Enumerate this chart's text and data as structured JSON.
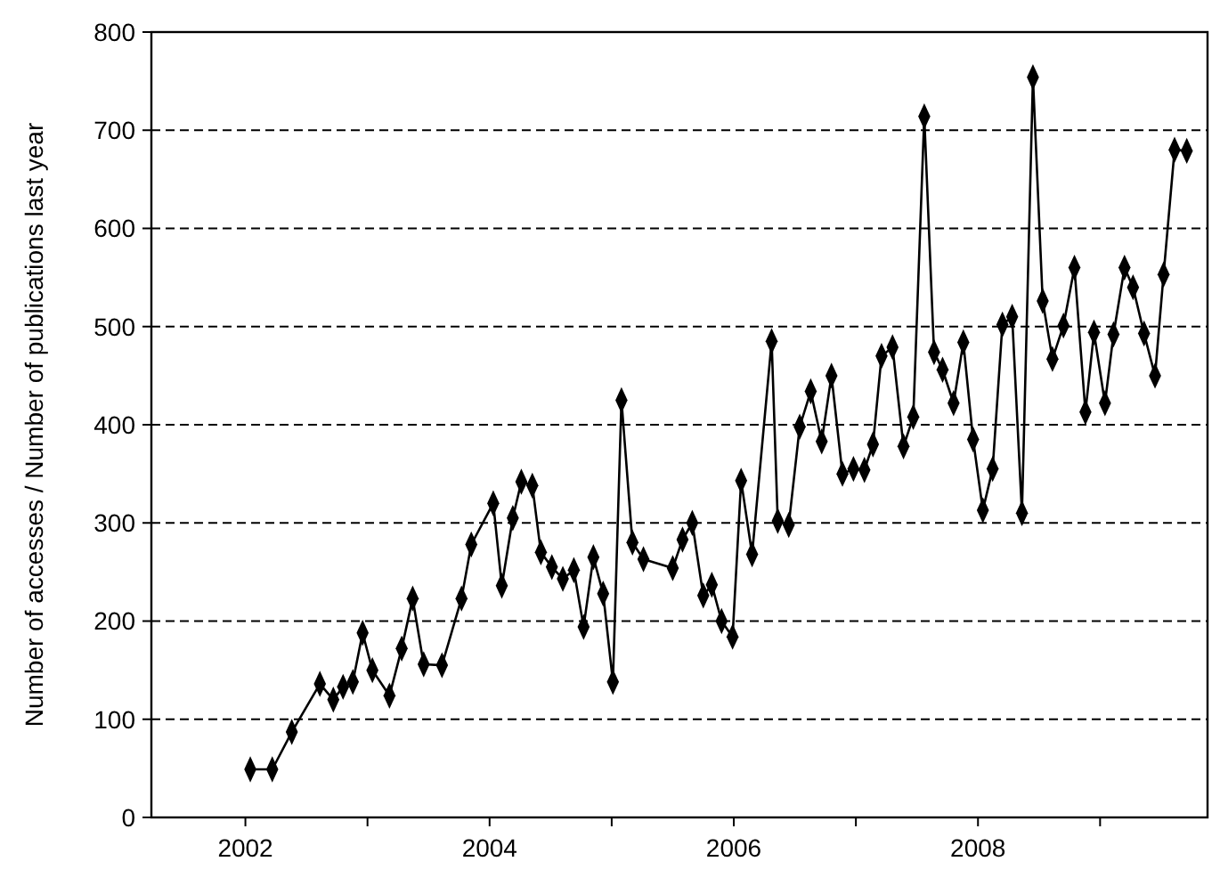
{
  "chart_data": {
    "type": "line",
    "ylabel": "Number of accesses / Number of publications last year",
    "xlim": [
      2001.23,
      2009.88
    ],
    "xticks": [
      {
        "value": 2002,
        "label": "2002"
      },
      {
        "value": 2003,
        "label": null
      },
      {
        "value": 2004,
        "label": "2004"
      },
      {
        "value": 2005,
        "label": null
      },
      {
        "value": 2006,
        "label": "2006"
      },
      {
        "value": 2007,
        "label": null
      },
      {
        "value": 2008,
        "label": "2008"
      },
      {
        "value": 2009,
        "label": null
      }
    ],
    "ylim": [
      0,
      800
    ],
    "yticks": [
      0,
      100,
      200,
      300,
      400,
      500,
      600,
      700,
      800
    ],
    "grid": "y",
    "marker": "diamond",
    "line_style": "solid",
    "series": [
      {
        "color": "#000000",
        "x": [
          2002.04,
          2002.22,
          2002.38,
          2002.61,
          2002.72,
          2002.8,
          2002.88,
          2002.96,
          2003.04,
          2003.18,
          2003.28,
          2003.37,
          2003.46,
          2003.61,
          2003.77,
          2003.85,
          2004.03,
          2004.1,
          2004.19,
          2004.26,
          2004.35,
          2004.42,
          2004.51,
          2004.6,
          2004.69,
          2004.77,
          2004.85,
          2004.93,
          2005.01,
          2005.08,
          2005.17,
          2005.26,
          2005.5,
          2005.58,
          2005.66,
          2005.75,
          2005.82,
          2005.9,
          2005.99,
          2006.06,
          2006.15,
          2006.31,
          2006.36,
          2006.45,
          2006.54,
          2006.63,
          2006.72,
          2006.8,
          2006.89,
          2006.98,
          2007.07,
          2007.14,
          2007.21,
          2007.3,
          2007.39,
          2007.47,
          2007.56,
          2007.64,
          2007.71,
          2007.8,
          2007.88,
          2007.96,
          2008.04,
          2008.12,
          2008.2,
          2008.28,
          2008.36,
          2008.45,
          2008.53,
          2008.61,
          2008.7,
          2008.79,
          2008.88,
          2008.95,
          2009.04,
          2009.11,
          2009.2,
          2009.27,
          2009.36,
          2009.45,
          2009.52,
          2009.61,
          2009.71
        ],
        "values": [
          49,
          49,
          87,
          136,
          120,
          133,
          138,
          188,
          150,
          124,
          172,
          223,
          156,
          155,
          223,
          278,
          320,
          236,
          305,
          342,
          338,
          270,
          255,
          243,
          252,
          194,
          265,
          228,
          138,
          425,
          280,
          263,
          254,
          283,
          300,
          226,
          237,
          200,
          184,
          343,
          268,
          485,
          302,
          298,
          398,
          434,
          383,
          450,
          350,
          355,
          354,
          380,
          470,
          479,
          378,
          408,
          714,
          474,
          456,
          422,
          484,
          385,
          313,
          355,
          502,
          510,
          310,
          754,
          526,
          467,
          501,
          560,
          413,
          494,
          422,
          492,
          560,
          540,
          493,
          450,
          553,
          680,
          679
        ]
      }
    ]
  }
}
